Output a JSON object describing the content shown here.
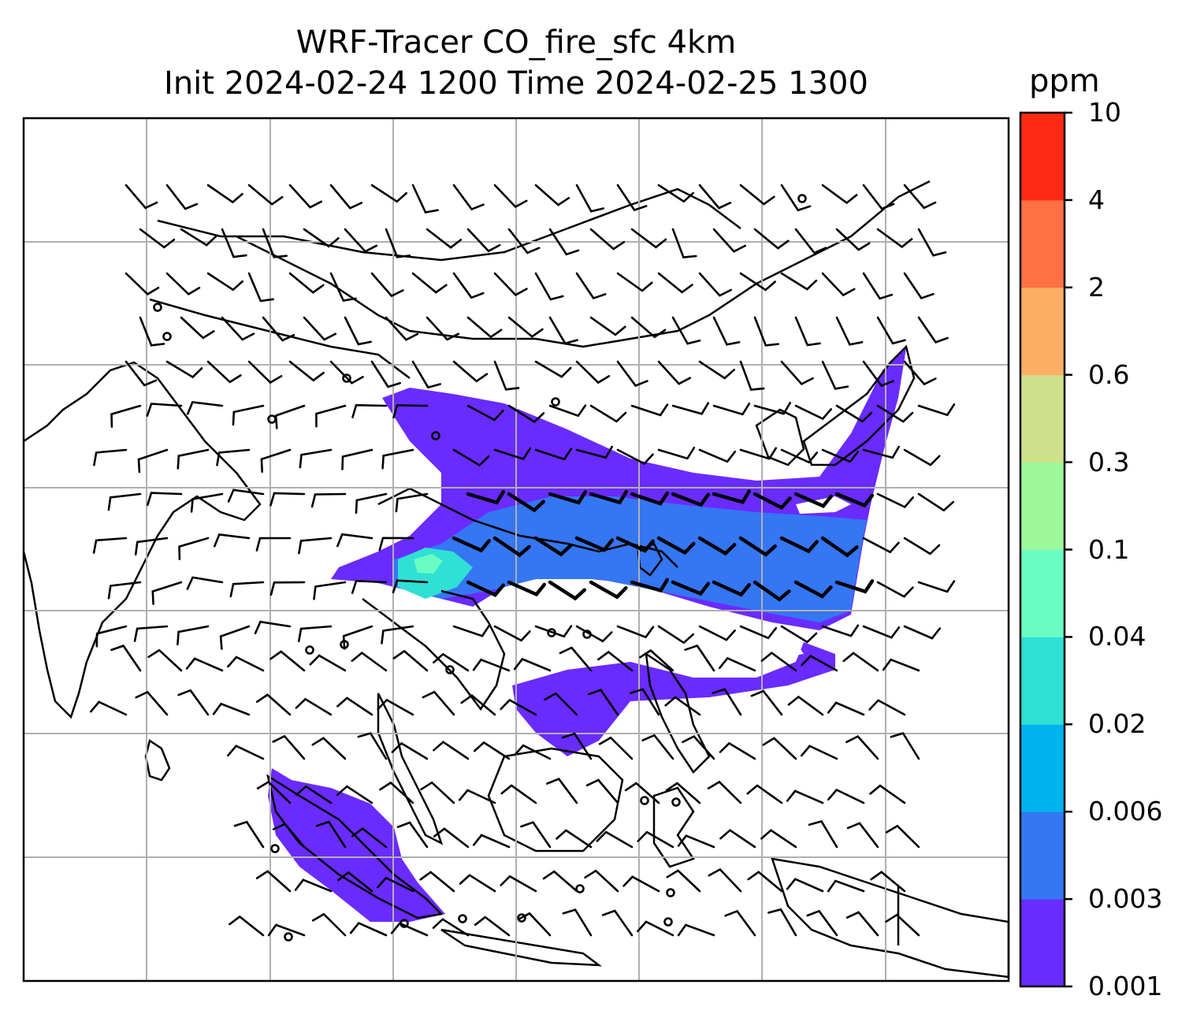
{
  "title": {
    "line1": "WRF-Tracer CO_fire_sfc 4km",
    "line2": "Init 2024-02-24 1200 Time 2024-02-25 1300"
  },
  "colorbar": {
    "unit": "ppm",
    "ticks": [
      "0.001",
      "0.003",
      "0.006",
      "0.02",
      "0.04",
      "0.1",
      "0.3",
      "0.6",
      "2",
      "4",
      "10"
    ],
    "colors": [
      "#6a2bff",
      "#3576f3",
      "#00b2ee",
      "#2fe0d5",
      "#6afdc3",
      "#9cf89b",
      "#cfe08a",
      "#fdb065",
      "#ff7144",
      "#ff2a14"
    ]
  },
  "map": {
    "field": "CO_fire_sfc",
    "plume_colors": {
      "low": "#6a2bff",
      "mid": "#3576f3",
      "high": "#2fe0d5",
      "peak": "#6afdc3"
    },
    "coastline_color": "#000000",
    "grid_color": "#b0b0b0"
  }
}
